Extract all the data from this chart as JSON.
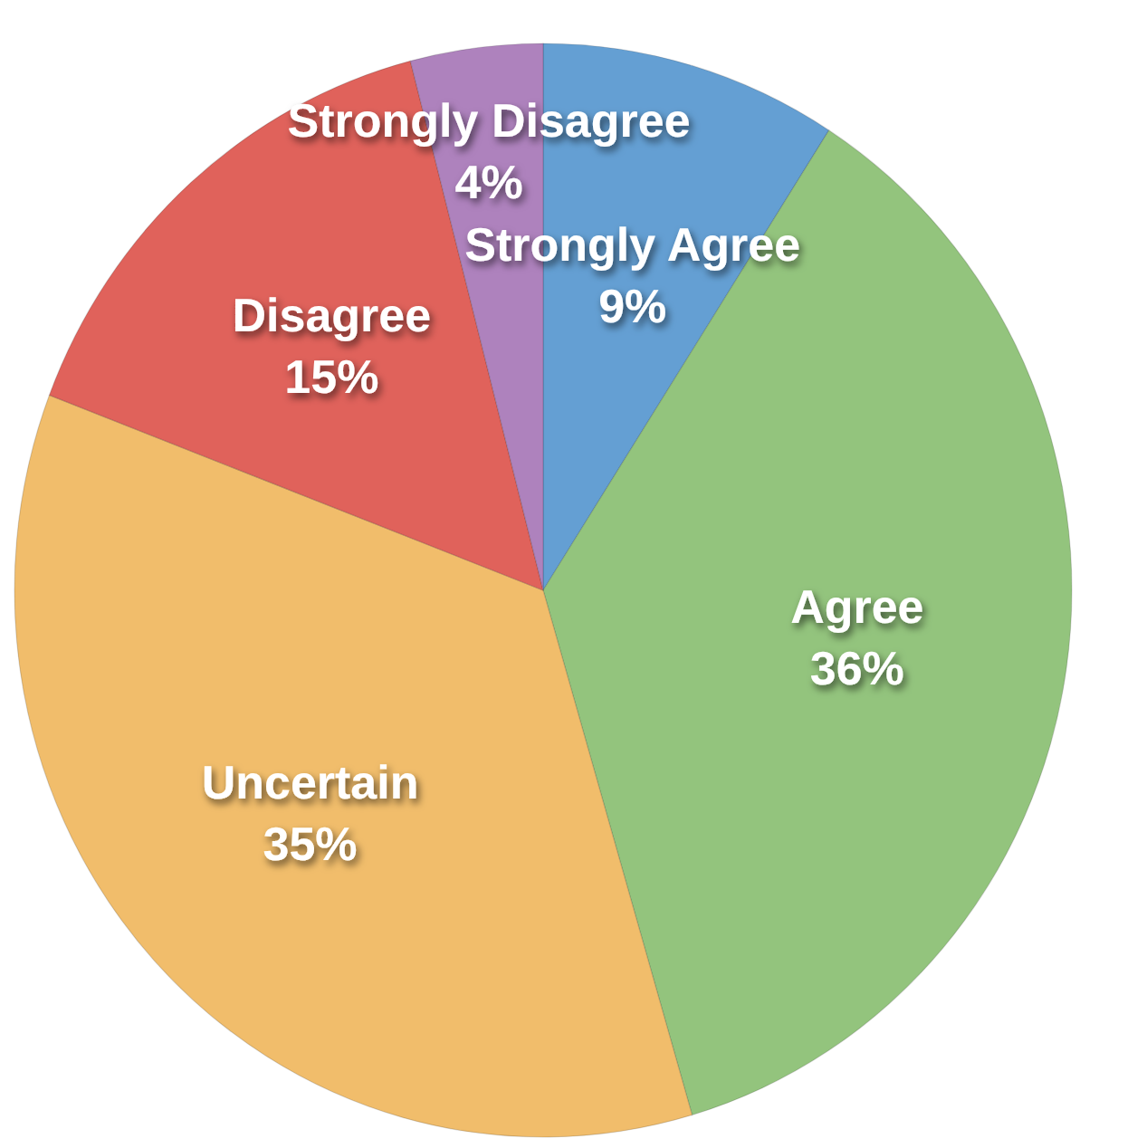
{
  "chart_data": {
    "type": "pie",
    "categories": [
      "Strongly Agree",
      "Agree",
      "Uncertain",
      "Disagree",
      "Strongly Disagree"
    ],
    "values": [
      9,
      36,
      35,
      15,
      4
    ],
    "value_labels": [
      "9%",
      "36%",
      "35%",
      "15%",
      "4%"
    ],
    "colors": [
      "#649fd3",
      "#93c47d",
      "#f1bd6b",
      "#e0625b",
      "#ae82bd"
    ]
  }
}
